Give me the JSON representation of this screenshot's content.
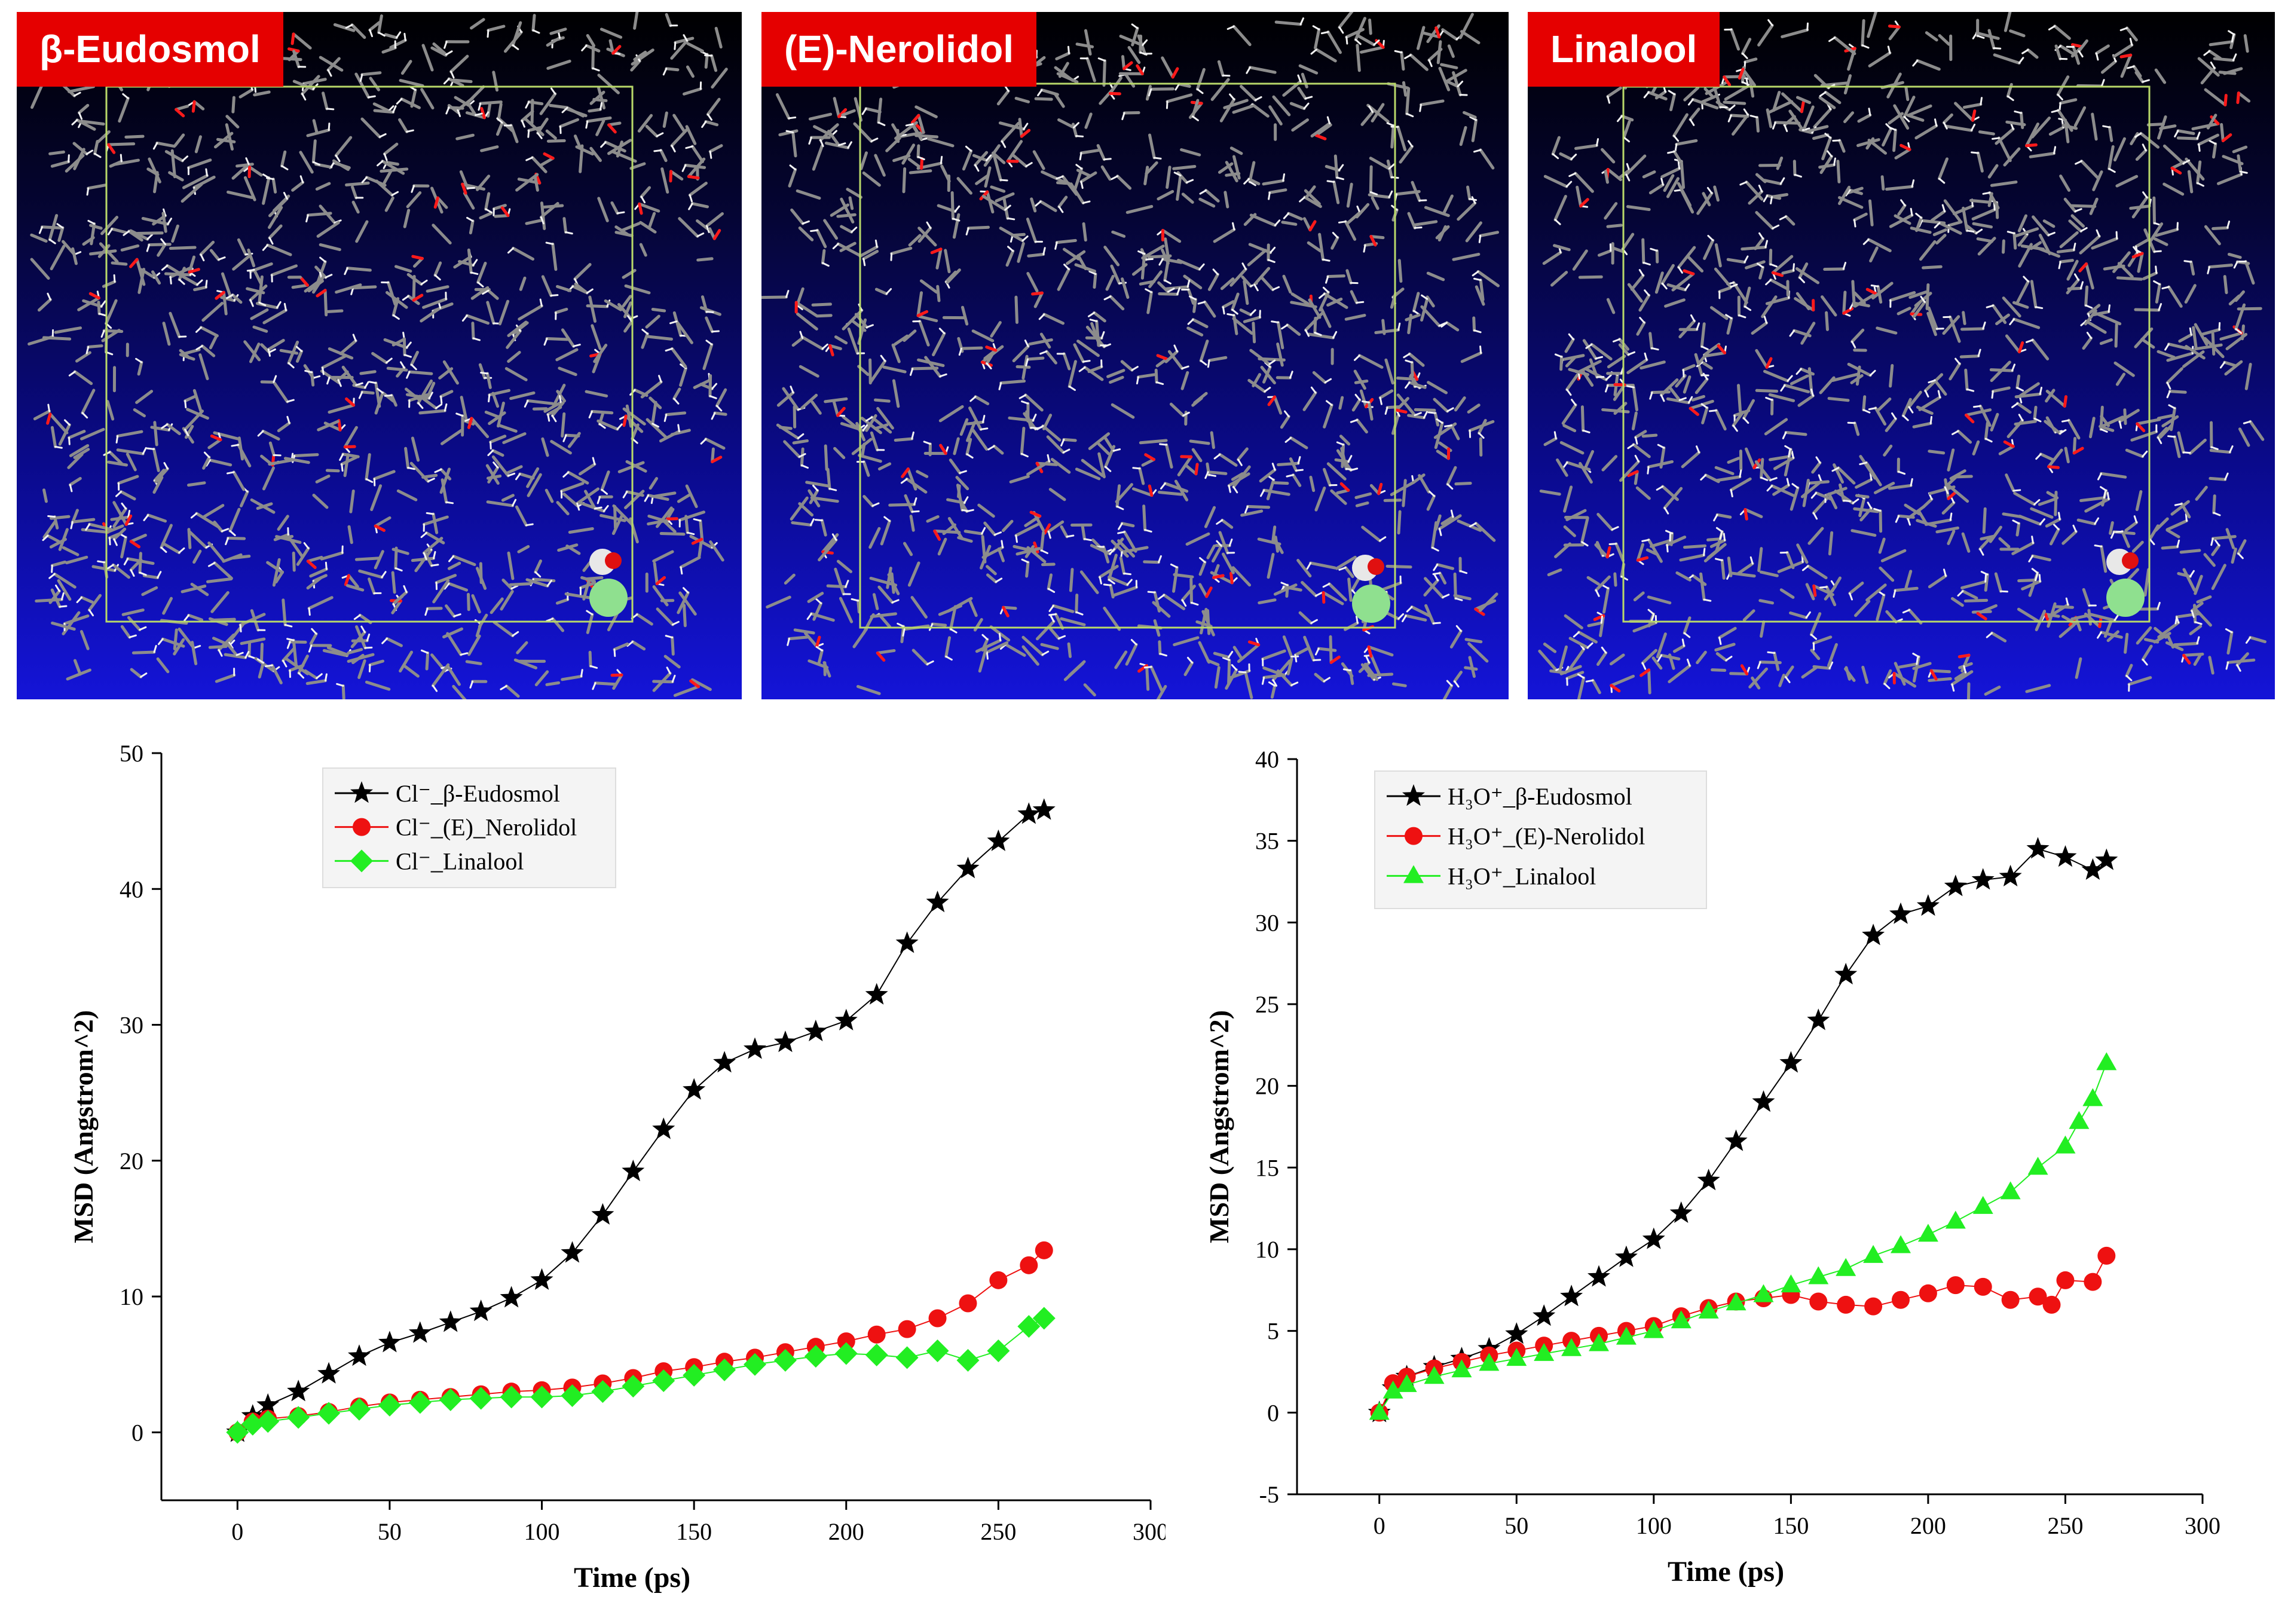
{
  "panels": [
    {
      "label": "β-Eudosmol"
    },
    {
      "label": "(E)-Nerolidol"
    },
    {
      "label": "Linalool"
    }
  ],
  "chart_data": [
    {
      "type": "scatter",
      "title": "",
      "xlabel": "Time (ps)",
      "ylabel": "MSD (Angstrom^2)",
      "xlim": [
        -25,
        300
      ],
      "ylim": [
        -5,
        50
      ],
      "xticks": [
        0,
        50,
        100,
        150,
        200,
        250,
        300
      ],
      "yticks": [
        0,
        10,
        20,
        30,
        40,
        50
      ],
      "legend_position": "top-left",
      "series": [
        {
          "name": "Cl⁻_β-Eudosmol",
          "color": "#000000",
          "marker": "star",
          "x": [
            0,
            5,
            10,
            20,
            30,
            40,
            50,
            60,
            70,
            80,
            90,
            100,
            110,
            120,
            130,
            140,
            150,
            160,
            170,
            180,
            190,
            200,
            210,
            220,
            230,
            240,
            250,
            260,
            265
          ],
          "y": [
            0,
            1.2,
            2.0,
            3.0,
            4.3,
            5.6,
            6.6,
            7.3,
            8.1,
            8.9,
            9.9,
            11.2,
            13.2,
            16.0,
            19.2,
            22.3,
            25.2,
            27.2,
            28.2,
            28.7,
            29.5,
            30.3,
            32.2,
            36.0,
            39.0,
            41.5,
            43.5,
            45.5,
            45.8
          ]
        },
        {
          "name": "Cl⁻_(E)_Nerolidol",
          "color": "#ee1111",
          "marker": "circle",
          "x": [
            0,
            5,
            10,
            20,
            30,
            40,
            50,
            60,
            70,
            80,
            90,
            100,
            110,
            120,
            130,
            140,
            150,
            160,
            170,
            180,
            190,
            200,
            210,
            220,
            230,
            240,
            250,
            260,
            265
          ],
          "y": [
            0,
            0.8,
            1.0,
            1.2,
            1.5,
            1.9,
            2.2,
            2.4,
            2.6,
            2.8,
            3.0,
            3.1,
            3.3,
            3.6,
            4.0,
            4.5,
            4.8,
            5.2,
            5.5,
            5.9,
            6.3,
            6.7,
            7.2,
            7.6,
            8.4,
            9.5,
            11.2,
            12.3,
            13.4
          ]
        },
        {
          "name": "Cl⁻_Linalool",
          "color": "#22ee22",
          "marker": "diamond",
          "x": [
            0,
            5,
            10,
            20,
            30,
            40,
            50,
            60,
            70,
            80,
            90,
            100,
            110,
            120,
            130,
            140,
            150,
            160,
            170,
            180,
            190,
            200,
            210,
            220,
            230,
            240,
            250,
            260,
            265
          ],
          "y": [
            0,
            0.6,
            0.8,
            1.1,
            1.4,
            1.7,
            2.0,
            2.2,
            2.4,
            2.5,
            2.6,
            2.6,
            2.7,
            3.0,
            3.4,
            3.8,
            4.2,
            4.6,
            5.0,
            5.3,
            5.6,
            5.8,
            5.7,
            5.5,
            6.0,
            5.3,
            6.0,
            7.8,
            8.4
          ]
        }
      ]
    },
    {
      "type": "scatter",
      "title": "",
      "xlabel": "Time (ps)",
      "ylabel": "MSD (Angstrom^2)",
      "xlim": [
        -30,
        300
      ],
      "ylim": [
        -5,
        40
      ],
      "xticks": [
        0,
        50,
        100,
        150,
        200,
        250,
        300
      ],
      "yticks": [
        -5,
        0,
        5,
        10,
        15,
        20,
        25,
        30,
        35,
        40
      ],
      "legend_position": "top-left",
      "series": [
        {
          "name": "H₃O⁺_β-Eudosmol",
          "color": "#000000",
          "marker": "star",
          "x": [
            0,
            5,
            10,
            20,
            30,
            40,
            50,
            60,
            70,
            80,
            90,
            100,
            110,
            120,
            130,
            140,
            150,
            160,
            170,
            180,
            190,
            200,
            210,
            220,
            230,
            240,
            250,
            260,
            265
          ],
          "y": [
            0,
            1.5,
            2.2,
            2.8,
            3.3,
            3.9,
            4.8,
            5.9,
            7.1,
            8.3,
            9.5,
            10.6,
            12.2,
            14.2,
            16.6,
            19.0,
            21.4,
            24.0,
            26.8,
            29.2,
            30.5,
            31.0,
            32.2,
            32.6,
            32.8,
            34.5,
            34.0,
            33.2,
            33.8
          ]
        },
        {
          "name": "H₃O⁺_(E)-Nerolidol",
          "color": "#ee1111",
          "marker": "circle",
          "x": [
            0,
            5,
            10,
            20,
            30,
            40,
            50,
            60,
            70,
            80,
            90,
            100,
            110,
            120,
            130,
            140,
            150,
            160,
            170,
            180,
            190,
            200,
            210,
            220,
            230,
            240,
            245,
            250,
            260,
            265
          ],
          "y": [
            0,
            1.8,
            2.2,
            2.7,
            3.1,
            3.5,
            3.8,
            4.1,
            4.4,
            4.7,
            5.0,
            5.3,
            5.9,
            6.4,
            6.8,
            7.0,
            7.2,
            6.8,
            6.6,
            6.5,
            6.9,
            7.3,
            7.8,
            7.7,
            6.9,
            7.1,
            6.6,
            8.1,
            8.0,
            9.6
          ]
        },
        {
          "name": "H₃O⁺_Linalool",
          "color": "#22ee22",
          "marker": "triangle",
          "x": [
            0,
            5,
            10,
            20,
            30,
            40,
            50,
            60,
            70,
            80,
            90,
            100,
            110,
            120,
            130,
            140,
            150,
            160,
            170,
            180,
            190,
            200,
            210,
            220,
            230,
            240,
            250,
            255,
            260,
            265
          ],
          "y": [
            0,
            1.3,
            1.7,
            2.2,
            2.6,
            3.0,
            3.3,
            3.6,
            3.9,
            4.2,
            4.6,
            5.0,
            5.6,
            6.2,
            6.7,
            7.2,
            7.8,
            8.3,
            8.8,
            9.6,
            10.2,
            10.9,
            11.7,
            12.6,
            13.5,
            15.0,
            16.3,
            17.8,
            19.2,
            21.4
          ]
        }
      ]
    }
  ]
}
